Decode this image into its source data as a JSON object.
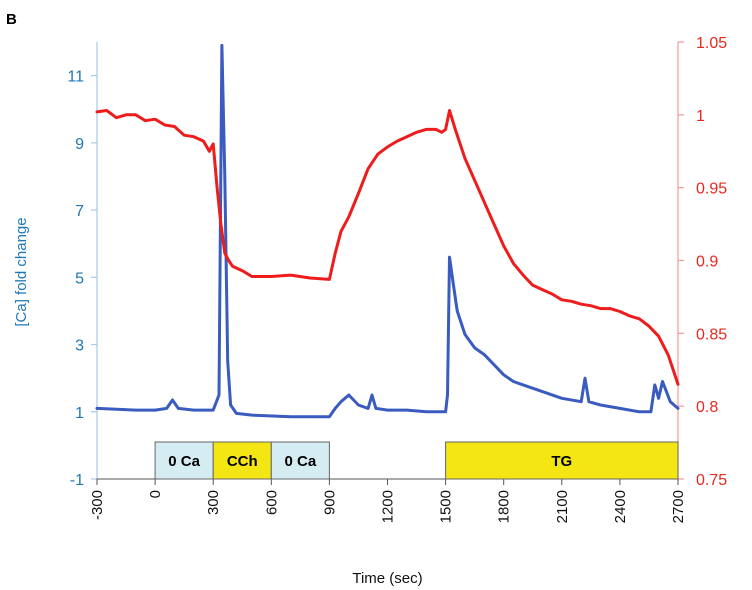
{
  "panel_label": "B",
  "chart_data": {
    "type": "line",
    "xlabel": "Time (sec)",
    "ylabel_left": "[Ca] fold change",
    "ylabel_right": "",
    "xlim": [
      -300,
      2700
    ],
    "ylim_left": [
      -1,
      12
    ],
    "ylim_right": [
      0.75,
      1.05
    ],
    "x_ticks": [
      -300,
      0,
      300,
      600,
      900,
      1200,
      1500,
      1800,
      2100,
      2400,
      2700
    ],
    "x_tick_labels": [
      "-300",
      "0",
      "300",
      "600",
      "900",
      "1200",
      "1500",
      "1800",
      "2100",
      "2400",
      "2700"
    ],
    "y_left_ticks": [
      -1,
      1,
      3,
      5,
      7,
      9,
      11
    ],
    "y_left_tick_labels": [
      "-1",
      "1",
      "3",
      "5",
      "7",
      "9",
      "11"
    ],
    "y_right_ticks": [
      0.75,
      0.8,
      0.85,
      0.9,
      0.95,
      1,
      1.05
    ],
    "y_right_tick_labels": [
      "0.75",
      "0.8",
      "0.85",
      "0.9",
      "0.95",
      "1",
      "1.05"
    ],
    "grid": false,
    "colors": {
      "left_axis": "#5b9bd5",
      "right_axis": "#e8281e",
      "blue_series": "#3a5bbf",
      "red_series": "#ee1c1c",
      "light_bar": "#d4ecf2",
      "yellow_bar": "#f4e613"
    },
    "treatment_bars": [
      {
        "label": "0 Ca",
        "start": 0,
        "end": 300,
        "color": "light"
      },
      {
        "label": "CCh",
        "start": 300,
        "end": 600,
        "color": "yellow"
      },
      {
        "label": "0 Ca",
        "start": 600,
        "end": 900,
        "color": "light"
      },
      {
        "label": "TG",
        "start": 1500,
        "end": 2700,
        "color": "yellow"
      }
    ],
    "series": [
      {
        "axis": "left",
        "color": "#3a5bbf",
        "x": [
          -300,
          -100,
          0,
          60,
          90,
          120,
          200,
          300,
          330,
          345,
          360,
          375,
          390,
          420,
          500,
          700,
          900,
          930,
          960,
          1000,
          1050,
          1100,
          1120,
          1140,
          1200,
          1300,
          1400,
          1500,
          1510,
          1520,
          1540,
          1560,
          1600,
          1650,
          1700,
          1750,
          1800,
          1850,
          1900,
          2000,
          2100,
          2200,
          2220,
          2240,
          2300,
          2400,
          2500,
          2560,
          2580,
          2600,
          2620,
          2660,
          2700
        ],
        "values": [
          1.1,
          1.05,
          1.05,
          1.1,
          1.35,
          1.1,
          1.05,
          1.05,
          1.5,
          11.9,
          8.0,
          2.5,
          1.2,
          0.95,
          0.9,
          0.85,
          0.85,
          1.1,
          1.3,
          1.5,
          1.2,
          1.1,
          1.5,
          1.1,
          1.05,
          1.05,
          1.0,
          1.0,
          1.5,
          5.6,
          4.8,
          4.0,
          3.3,
          2.9,
          2.7,
          2.4,
          2.1,
          1.9,
          1.8,
          1.6,
          1.4,
          1.3,
          2.0,
          1.3,
          1.2,
          1.1,
          1.0,
          1.0,
          1.8,
          1.4,
          1.9,
          1.3,
          1.1
        ]
      },
      {
        "axis": "right",
        "color": "#ee1c1c",
        "x": [
          -300,
          -250,
          -200,
          -150,
          -100,
          -50,
          0,
          50,
          100,
          150,
          200,
          250,
          280,
          300,
          320,
          340,
          360,
          380,
          400,
          450,
          500,
          600,
          700,
          800,
          900,
          930,
          960,
          1000,
          1050,
          1100,
          1150,
          1200,
          1250,
          1300,
          1350,
          1400,
          1450,
          1480,
          1500,
          1520,
          1550,
          1600,
          1650,
          1700,
          1750,
          1800,
          1850,
          1900,
          1950,
          2000,
          2050,
          2100,
          2150,
          2200,
          2250,
          2300,
          2350,
          2400,
          2450,
          2500,
          2550,
          2600,
          2650,
          2700
        ],
        "values": [
          1.002,
          1.003,
          0.998,
          1.0,
          1.0,
          0.996,
          0.997,
          0.993,
          0.992,
          0.986,
          0.985,
          0.982,
          0.975,
          0.98,
          0.95,
          0.925,
          0.905,
          0.9,
          0.896,
          0.893,
          0.889,
          0.889,
          0.89,
          0.888,
          0.887,
          0.905,
          0.92,
          0.93,
          0.946,
          0.963,
          0.973,
          0.978,
          0.982,
          0.985,
          0.988,
          0.99,
          0.99,
          0.988,
          0.99,
          1.003,
          0.99,
          0.97,
          0.955,
          0.94,
          0.925,
          0.91,
          0.898,
          0.89,
          0.883,
          0.88,
          0.877,
          0.873,
          0.872,
          0.87,
          0.869,
          0.867,
          0.867,
          0.865,
          0.862,
          0.86,
          0.855,
          0.848,
          0.835,
          0.815
        ]
      }
    ]
  }
}
